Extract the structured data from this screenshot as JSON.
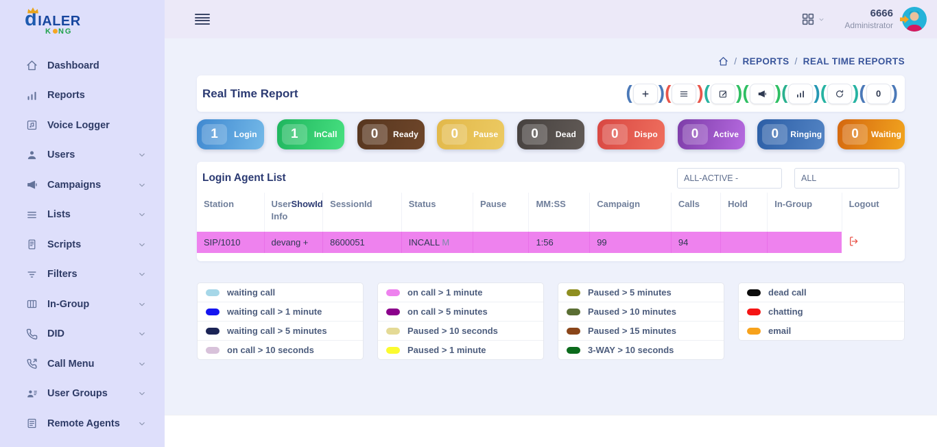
{
  "brand": {
    "line1_initial": "d",
    "line1_rest": "IALER",
    "line2_pre": "K",
    "line2_post": "NG"
  },
  "topbar": {
    "user_id": "6666",
    "user_role": "Administrator"
  },
  "breadcrumb": {
    "separator": "/",
    "items": [
      "REPORTS",
      "REAL TIME REPORTS"
    ]
  },
  "sidebar": {
    "items": [
      {
        "label": "Dashboard",
        "icon": "home",
        "chevron": false
      },
      {
        "label": "Reports",
        "icon": "bar-chart",
        "chevron": false
      },
      {
        "label": "Voice Logger",
        "icon": "music-note",
        "chevron": false
      },
      {
        "label": "Users",
        "icon": "user",
        "chevron": true
      },
      {
        "label": "Campaigns",
        "icon": "megaphone",
        "chevron": true
      },
      {
        "label": "Lists",
        "icon": "list",
        "chevron": true
      },
      {
        "label": "Scripts",
        "icon": "document",
        "chevron": true
      },
      {
        "label": "Filters",
        "icon": "filter",
        "chevron": true
      },
      {
        "label": "In-Group",
        "icon": "columns",
        "chevron": true
      },
      {
        "label": "DID",
        "icon": "phone",
        "chevron": true
      },
      {
        "label": "Call Menu",
        "icon": "phone-call",
        "chevron": true
      },
      {
        "label": "User Groups",
        "icon": "user-group",
        "chevron": true
      },
      {
        "label": "Remote Agents",
        "icon": "list-doc",
        "chevron": true
      }
    ]
  },
  "report": {
    "title": "Real Time Report",
    "toolbar": [
      {
        "name": "add",
        "glyph": "plus",
        "paren_left": "#4b79b8",
        "paren_right": "#4b79b8"
      },
      {
        "name": "list",
        "glyph": "list",
        "paren_left": "#e8554a",
        "paren_right": "#e8554a"
      },
      {
        "name": "edit",
        "glyph": "edit",
        "paren_left": "#29b3a0",
        "paren_right": "#31bf63"
      },
      {
        "name": "broadcast",
        "glyph": "megaphone",
        "paren_left": "#2fbf63",
        "paren_right": "#2fbf63"
      },
      {
        "name": "stats",
        "glyph": "bar-chart",
        "paren_left": "#2bb18f",
        "paren_right": "#2597b3"
      },
      {
        "name": "refresh",
        "glyph": "refresh",
        "paren_left": "#27b3a2",
        "paren_right": "#27b3a2"
      },
      {
        "name": "counter",
        "glyph": "0",
        "paren_left": "#4b79b8",
        "paren_right": "#4b79b8"
      }
    ]
  },
  "badges": [
    {
      "count": "1",
      "label": "Login",
      "from": "#3f88d0",
      "to": "#74b9e8"
    },
    {
      "count": "1",
      "label": "InCall",
      "from": "#1fb55e",
      "to": "#47e080"
    },
    {
      "count": "0",
      "label": "Ready",
      "from": "#57361f",
      "to": "#6e462a"
    },
    {
      "count": "0",
      "label": "Pause",
      "from": "#e2b84a",
      "to": "#ecca62"
    },
    {
      "count": "0",
      "label": "Dead",
      "from": "#46413f",
      "to": "#615a56"
    },
    {
      "count": "0",
      "label": "Dispo",
      "from": "#d84742",
      "to": "#ef6f5e"
    },
    {
      "count": "0",
      "label": "Active",
      "from": "#7d3da8",
      "to": "#b66ae0"
    },
    {
      "count": "0",
      "label": "Ringing",
      "from": "#2c5ea6",
      "to": "#5384c4"
    },
    {
      "count": "0",
      "label": "Waiting",
      "from": "#d4670f",
      "to": "#f2a51f"
    }
  ],
  "agent_list": {
    "title": "Login Agent List",
    "filters": [
      {
        "value": "ALL-ACTIVE -"
      },
      {
        "value": "ALL"
      }
    ],
    "columns": [
      "Station",
      {
        "pre": "User",
        "bold": "ShowId",
        "line2": "Info"
      },
      "SessionId",
      "Status",
      "Pause",
      "MM:SS",
      "Campaign",
      "Calls",
      "Hold",
      "In-Group",
      "Logout"
    ],
    "row": {
      "station": "SIP/1010",
      "user": "devang +",
      "session_id": "8600051",
      "status": "INCALL",
      "status_note": "M",
      "pause": "",
      "mmss": "1:56",
      "campaign": "99",
      "calls": "94",
      "hold": "",
      "in_group": ""
    },
    "row_highlight_color": "#ee82ee"
  },
  "legend": {
    "groups": [
      [
        {
          "color": "#a6d7e8",
          "label": "waiting call"
        },
        {
          "color": "#1515f0",
          "label": "waiting call > 1 minute"
        },
        {
          "color": "#1b2455",
          "label": "waiting call > 5 minutes"
        },
        {
          "color": "#d8c2da",
          "label": "on call > 10 seconds"
        }
      ],
      [
        {
          "color": "#ee82ee",
          "label": "on call > 1 minute"
        },
        {
          "color": "#8b008b",
          "label": "on call > 5 minutes"
        },
        {
          "color": "#e4da96",
          "label": "Paused > 10 seconds"
        },
        {
          "color": "#fbfb2f",
          "label": "Paused > 1 minute"
        }
      ],
      [
        {
          "color": "#8e8e20",
          "label": "Paused > 5 minutes"
        },
        {
          "color": "#5a6e33",
          "label": "Paused > 10 minutes"
        },
        {
          "color": "#8a4519",
          "label": "Paused > 15 minutes"
        },
        {
          "color": "#0c6b1c",
          "label": "3-WAY > 10 seconds"
        }
      ],
      [
        {
          "color": "#0c0c0c",
          "label": "dead call"
        },
        {
          "color": "#f51414",
          "label": "chatting"
        },
        {
          "color": "#f7a21b",
          "label": "email"
        }
      ]
    ]
  }
}
